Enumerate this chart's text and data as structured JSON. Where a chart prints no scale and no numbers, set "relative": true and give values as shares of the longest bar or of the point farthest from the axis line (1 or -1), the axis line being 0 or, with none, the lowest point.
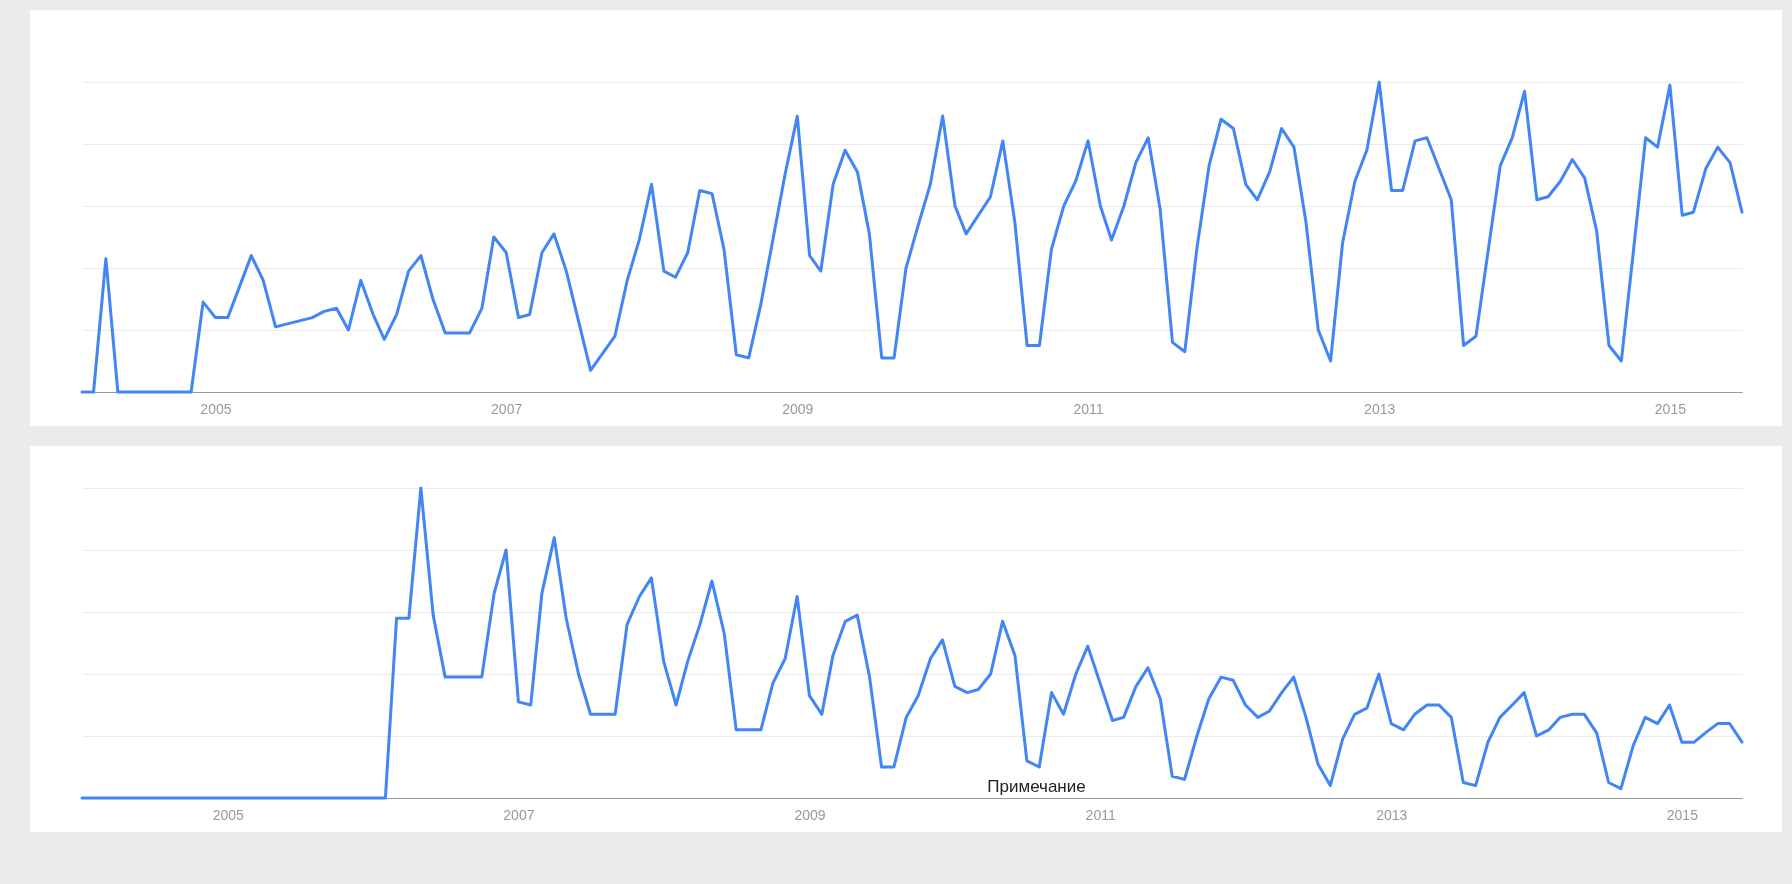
{
  "chart_data": [
    {
      "type": "line",
      "relative": true,
      "grid": "y",
      "xlim": [
        "2004-02",
        "2015-07"
      ],
      "xticks": [
        "2005",
        "2007",
        "2009",
        "2011",
        "2013",
        "2015"
      ],
      "series": [
        {
          "color": "#4285f4",
          "x": [
            "2004-02",
            "2004-03",
            "2004-04",
            "2004-05",
            "2004-11",
            "2004-12",
            "2005-01",
            "2005-02",
            "2005-04",
            "2005-05",
            "2005-06",
            "2005-09",
            "2005-10",
            "2005-11",
            "2005-12",
            "2006-01",
            "2006-02",
            "2006-03",
            "2006-04",
            "2006-05",
            "2006-06",
            "2006-07",
            "2006-08",
            "2006-10",
            "2006-11",
            "2006-12",
            "2007-01",
            "2007-02",
            "2007-03",
            "2007-04",
            "2007-05",
            "2007-06",
            "2007-08",
            "2007-10",
            "2007-11",
            "2007-12",
            "2008-01",
            "2008-02",
            "2008-03",
            "2008-04",
            "2008-05",
            "2008-06",
            "2008-07",
            "2008-08",
            "2008-09",
            "2008-10",
            "2008-12",
            "2009-01",
            "2009-02",
            "2009-03",
            "2009-04",
            "2009-05",
            "2009-06",
            "2009-07",
            "2009-08",
            "2009-09",
            "2009-10",
            "2009-11",
            "2009-12",
            "2010-01",
            "2010-02",
            "2010-03",
            "2010-05",
            "2010-06",
            "2010-07",
            "2010-08",
            "2010-09",
            "2010-10",
            "2010-11",
            "2010-12",
            "2011-01",
            "2011-02",
            "2011-03",
            "2011-04",
            "2011-05",
            "2011-06",
            "2011-07",
            "2011-08",
            "2011-09",
            "2011-10",
            "2011-11",
            "2011-12",
            "2012-01",
            "2012-02",
            "2012-03",
            "2012-04",
            "2012-05",
            "2012-06",
            "2012-07",
            "2012-08",
            "2012-09",
            "2012-10",
            "2012-11",
            "2012-12",
            "2013-01",
            "2013-02",
            "2013-03",
            "2013-04",
            "2013-05",
            "2013-07",
            "2013-08",
            "2013-09",
            "2013-10",
            "2013-11",
            "2013-12",
            "2014-01",
            "2014-02",
            "2014-03",
            "2014-04",
            "2014-05",
            "2014-06",
            "2014-07",
            "2014-08",
            "2014-09",
            "2014-10",
            "2014-11",
            "2014-12",
            "2015-01",
            "2015-02",
            "2015-03",
            "2015-04",
            "2015-05",
            "2015-06",
            "2015-07"
          ],
          "values": [
            0,
            0,
            0.43,
            0,
            0,
            0.29,
            0.24,
            0.24,
            0.44,
            0.36,
            0.21,
            0.24,
            0.26,
            0.27,
            0.2,
            0.36,
            0.25,
            0.17,
            0.25,
            0.39,
            0.44,
            0.3,
            0.19,
            0.19,
            0.27,
            0.5,
            0.45,
            0.24,
            0.25,
            0.45,
            0.51,
            0.39,
            0.07,
            0.18,
            0.36,
            0.49,
            0.67,
            0.39,
            0.37,
            0.45,
            0.65,
            0.64,
            0.46,
            0.12,
            0.11,
            0.28,
            0.7,
            0.89,
            0.44,
            0.39,
            0.67,
            0.78,
            0.71,
            0.51,
            0.11,
            0.11,
            0.4,
            0.54,
            0.67,
            0.89,
            0.6,
            0.51,
            0.63,
            0.81,
            0.55,
            0.15,
            0.15,
            0.46,
            0.6,
            0.68,
            0.81,
            0.6,
            0.49,
            0.6,
            0.74,
            0.82,
            0.59,
            0.16,
            0.13,
            0.46,
            0.73,
            0.88,
            0.85,
            0.67,
            0.62,
            0.71,
            0.85,
            0.79,
            0.55,
            0.2,
            0.1,
            0.48,
            0.68,
            0.78,
            1,
            0.65,
            0.65,
            0.81,
            0.82,
            0.62,
            0.15,
            0.18,
            0.45,
            0.73,
            0.82,
            0.97,
            0.62,
            0.63,
            0.68,
            0.75,
            0.69,
            0.52,
            0.15,
            0.1,
            0.45,
            0.82,
            0.79,
            0.99,
            0.57,
            0.58,
            0.72,
            0.79,
            0.74,
            0.58
          ]
        }
      ]
    },
    {
      "type": "line",
      "relative": true,
      "grid": "y",
      "xlim": [
        "2004-01",
        "2015-06"
      ],
      "xticks": [
        "2005",
        "2007",
        "2009",
        "2011",
        "2013",
        "2015"
      ],
      "annotations": [
        "Примечание"
      ],
      "series": [
        {
          "color": "#4285f4",
          "x": [
            "2004-01",
            "2006-02",
            "2006-03",
            "2006-04",
            "2006-05",
            "2006-06",
            "2006-07",
            "2006-10",
            "2006-11",
            "2006-12",
            "2007-01",
            "2007-02",
            "2007-03",
            "2007-04",
            "2007-05",
            "2007-06",
            "2007-07",
            "2007-09",
            "2007-10",
            "2007-11",
            "2007-12",
            "2008-01",
            "2008-02",
            "2008-03",
            "2008-04",
            "2008-05",
            "2008-06",
            "2008-07",
            "2008-09",
            "2008-10",
            "2008-11",
            "2008-12",
            "2009-01",
            "2009-02",
            "2009-03",
            "2009-04",
            "2009-05",
            "2009-06",
            "2009-07",
            "2009-08",
            "2009-09",
            "2009-10",
            "2009-11",
            "2009-12",
            "2010-01",
            "2010-02",
            "2010-03",
            "2010-04",
            "2010-05",
            "2010-06",
            "2010-07",
            "2010-08",
            "2010-09",
            "2010-10",
            "2010-11",
            "2010-12",
            "2011-01",
            "2011-02",
            "2011-03",
            "2011-04",
            "2011-05",
            "2011-06",
            "2011-07",
            "2011-08",
            "2011-09",
            "2011-10",
            "2011-11",
            "2011-12",
            "2012-01",
            "2012-02",
            "2012-03",
            "2012-04",
            "2012-05",
            "2012-06",
            "2012-07",
            "2012-08",
            "2012-09",
            "2012-10",
            "2012-11",
            "2012-12",
            "2013-01",
            "2013-02",
            "2013-03",
            "2013-04",
            "2013-05",
            "2013-06",
            "2013-07",
            "2013-08",
            "2013-09",
            "2013-10",
            "2013-11",
            "2013-12",
            "2014-01",
            "2014-02",
            "2014-03",
            "2014-04",
            "2014-05",
            "2014-06",
            "2014-07",
            "2014-08",
            "2014-09",
            "2014-10",
            "2014-11",
            "2014-12",
            "2015-01",
            "2015-02",
            "2015-03",
            "2015-04",
            "2015-05",
            "2015-06"
          ],
          "values": [
            0,
            0,
            0.58,
            0.58,
            1,
            0.59,
            0.39,
            0.39,
            0.66,
            0.8,
            0.31,
            0.3,
            0.66,
            0.84,
            0.58,
            0.4,
            0.27,
            0.27,
            0.56,
            0.65,
            0.71,
            0.44,
            0.3,
            0.44,
            0.56,
            0.7,
            0.53,
            0.22,
            0.22,
            0.37,
            0.45,
            0.65,
            0.33,
            0.27,
            0.46,
            0.57,
            0.59,
            0.39,
            0.1,
            0.1,
            0.26,
            0.33,
            0.45,
            0.51,
            0.36,
            0.34,
            0.35,
            0.4,
            0.57,
            0.46,
            0.12,
            0.1,
            0.34,
            0.27,
            0.4,
            0.49,
            0.37,
            0.25,
            0.26,
            0.36,
            0.42,
            0.32,
            0.07,
            0.06,
            0.2,
            0.32,
            0.39,
            0.38,
            0.3,
            0.26,
            0.28,
            0.34,
            0.39,
            0.26,
            0.11,
            0.04,
            0.19,
            0.27,
            0.29,
            0.4,
            0.24,
            0.22,
            0.27,
            0.3,
            0.3,
            0.26,
            0.05,
            0.04,
            0.18,
            0.26,
            0.3,
            0.34,
            0.2,
            0.22,
            0.26,
            0.27,
            0.27,
            0.21,
            0.05,
            0.03,
            0.17,
            0.26,
            0.24,
            0.3,
            0.18,
            0.18,
            0.21,
            0.24,
            0.24,
            0.18
          ]
        }
      ]
    }
  ]
}
